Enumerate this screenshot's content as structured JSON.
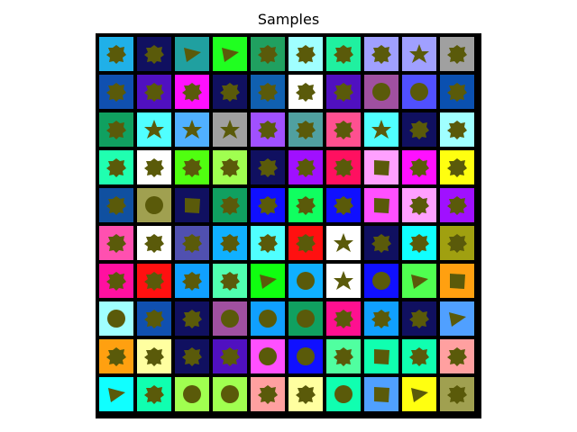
{
  "figure": {
    "title": "Samples"
  },
  "grid": {
    "rows": 10,
    "cols": 10,
    "frame_color": "#000000",
    "object_color": "#5a5a0a",
    "tiles": [
      [
        "#20b0e8",
        "#101060",
        "#20a0a0",
        "#20ff20",
        "#20a060",
        "#a0ffff",
        "#20f0a0",
        "#a0a0ff",
        "#a0a0ff",
        "#a0a0a0"
      ],
      [
        "#1050b0",
        "#5010c0",
        "#ff10ff",
        "#101060",
        "#1060b0",
        "#ffffff",
        "#5010c0",
        "#a050a0",
        "#5050ff",
        "#0a50b0"
      ],
      [
        "#10a060",
        "#50ffff",
        "#50b0ff",
        "#a0a0a0",
        "#a050ff",
        "#50a0a0",
        "#ff5090",
        "#50ffff",
        "#101060",
        "#a0ffff"
      ],
      [
        "#20ffb0",
        "#ffffff",
        "#50ff10",
        "#a0ff50",
        "#101060",
        "#a010ff",
        "#ff1060",
        "#ffa0ff",
        "#ff10ff",
        "#ffff10"
      ],
      [
        "#1050a0",
        "#a0a050",
        "#101060",
        "#10a060",
        "#1010ff",
        "#10ff60",
        "#1010ff",
        "#ff50ff",
        "#ffa0ff",
        "#a010ff"
      ],
      [
        "#ff50b0",
        "#ffffff",
        "#5050b0",
        "#10b0ff",
        "#50ffff",
        "#ff1010",
        "#ffffff",
        "#101060",
        "#10ffff",
        "#a0a010"
      ],
      [
        "#ff10a0",
        "#ff1010",
        "#10a0ff",
        "#50ffb0",
        "#10ff10",
        "#10b0ff",
        "#ffffff",
        "#1010ff",
        "#50ff50",
        "#ffa010"
      ],
      [
        "#a0ffff",
        "#1050b0",
        "#101060",
        "#a050a0",
        "#10a0ff",
        "#10a060",
        "#ff1090",
        "#10a0ff",
        "#101060",
        "#50a0ff"
      ],
      [
        "#ffa010",
        "#ffffa0",
        "#101060",
        "#5010c0",
        "#ff50ff",
        "#1010ff",
        "#50ffa0",
        "#10ffb0",
        "#10ffb0",
        "#ffa0a0"
      ],
      [
        "#10ffff",
        "#10ffb0",
        "#a0ff50",
        "#a0ff50",
        "#ffa0a0",
        "#ffffa0",
        "#10ffb0",
        "#50a0ff",
        "#ffff10",
        "#a0a050"
      ]
    ],
    "shapes": [
      [
        "blob",
        "blob",
        "triangle",
        "triangle",
        "blob",
        "blob",
        "blob",
        "blob",
        "star",
        "blob"
      ],
      [
        "blob",
        "blob",
        "blob",
        "blob",
        "blob",
        "blob",
        "blob",
        "circle",
        "circle",
        "blob"
      ],
      [
        "blob",
        "star",
        "star",
        "star",
        "blob",
        "blob",
        "blob",
        "star",
        "blob",
        "blob"
      ],
      [
        "blob",
        "blob",
        "blob",
        "blob",
        "blob",
        "blob",
        "blob",
        "square",
        "blob",
        "blob"
      ],
      [
        "blob",
        "circle",
        "square",
        "blob",
        "blob",
        "blob",
        "blob",
        "square",
        "blob",
        "blob"
      ],
      [
        "blob",
        "blob",
        "blob",
        "blob",
        "blob",
        "blob",
        "star",
        "blob",
        "blob",
        "blob"
      ],
      [
        "blob",
        "blob",
        "blob",
        "blob",
        "triangle",
        "circle",
        "star",
        "circle",
        "triangle",
        "square"
      ],
      [
        "circle",
        "blob",
        "blob",
        "circle",
        "circle",
        "circle",
        "blob",
        "blob",
        "blob",
        "triangle"
      ],
      [
        "blob",
        "blob",
        "blob",
        "blob",
        "circle",
        "circle",
        "blob",
        "square",
        "blob",
        "blob"
      ],
      [
        "triangle",
        "blob",
        "circle",
        "circle",
        "blob",
        "blob",
        "circle",
        "square",
        "triangle",
        "blob"
      ]
    ]
  }
}
